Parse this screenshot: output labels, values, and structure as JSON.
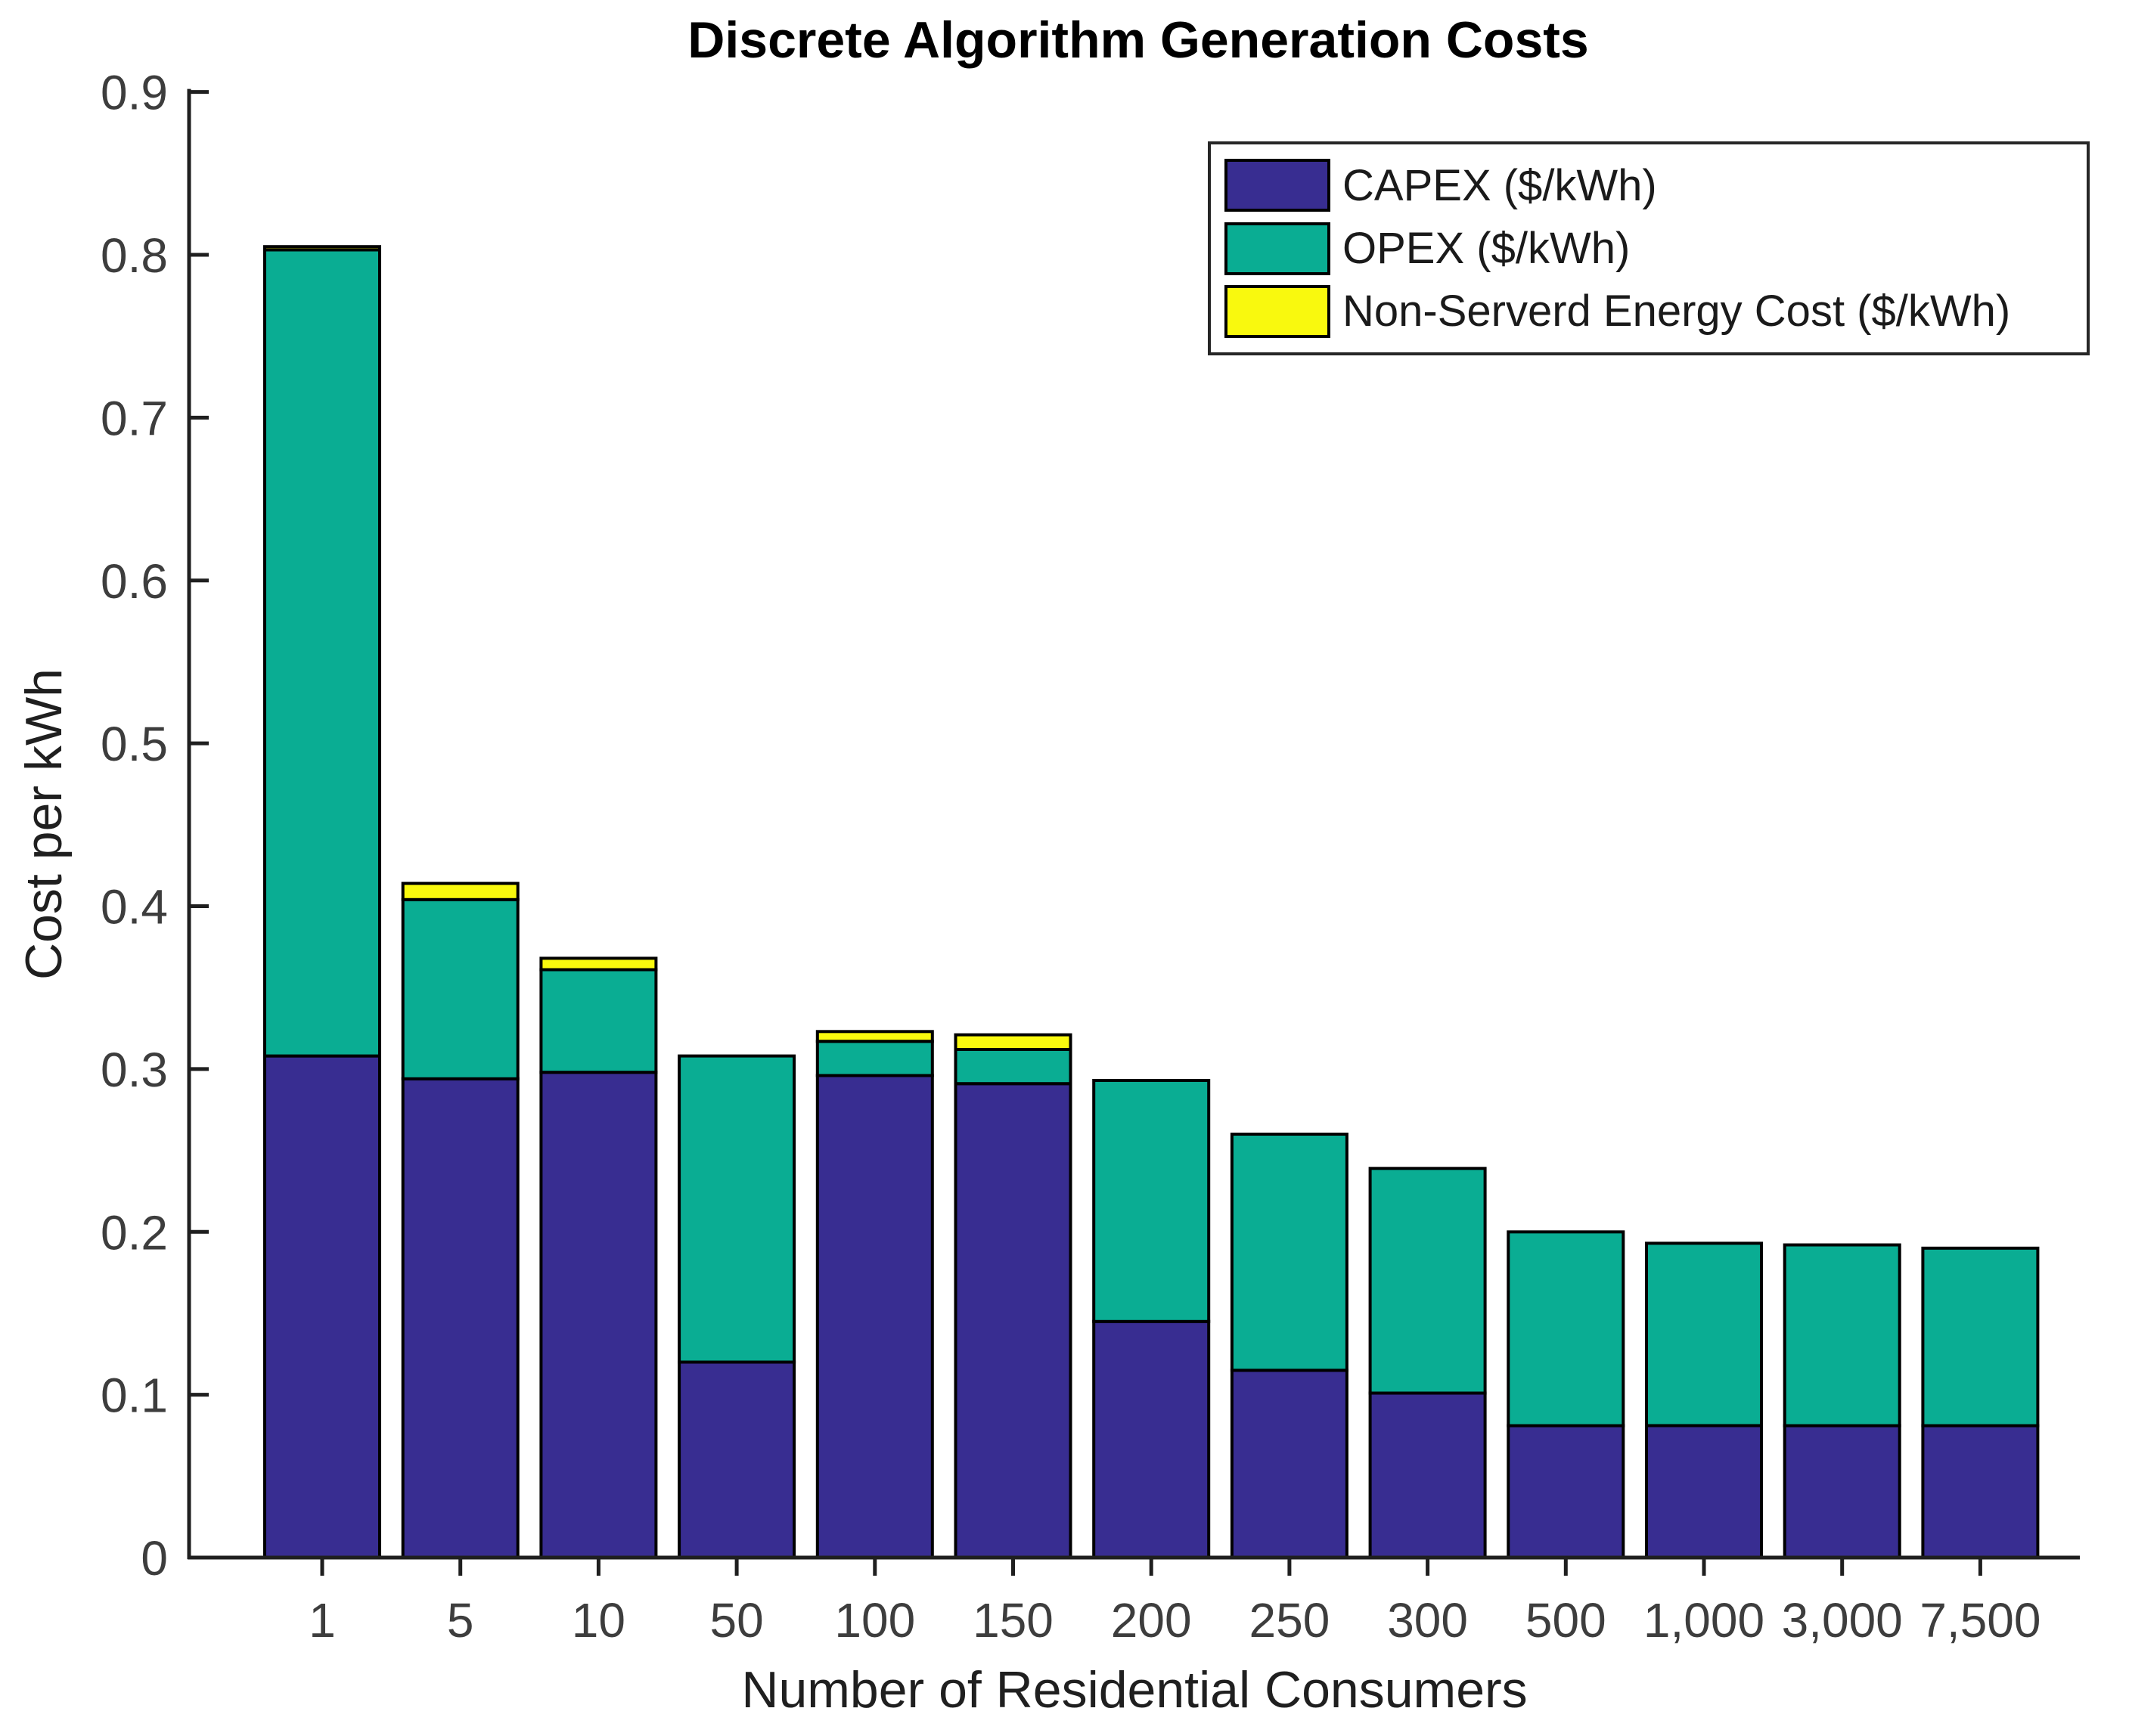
{
  "chart_data": {
    "type": "bar",
    "stacked": true,
    "title": "Discrete Algorithm Generation Costs",
    "xlabel": "Number of Residential Consumers",
    "ylabel": "Cost per kWh",
    "categories": [
      "1",
      "5",
      "10",
      "50",
      "100",
      "150",
      "200",
      "250",
      "300",
      "500",
      "1,000",
      "3,000",
      "7,500"
    ],
    "series": [
      {
        "name": "CAPEX ($/kWh)",
        "color": "#382D91",
        "values": [
          0.308,
          0.294,
          0.298,
          0.12,
          0.296,
          0.291,
          0.145,
          0.115,
          0.101,
          0.081,
          0.081,
          0.081,
          0.081
        ]
      },
      {
        "name": "OPEX ($/kWh)",
        "color": "#0AAD93",
        "values": [
          0.495,
          0.11,
          0.063,
          0.188,
          0.021,
          0.021,
          0.148,
          0.145,
          0.138,
          0.119,
          0.112,
          0.111,
          0.109
        ]
      },
      {
        "name": "Non-Serverd Energy Cost ($/kWh)",
        "color": "#F9F90E",
        "values": [
          0.002,
          0.01,
          0.007,
          0,
          0.006,
          0.009,
          0,
          0,
          0,
          0,
          0,
          0,
          0
        ]
      }
    ],
    "totals": [
      0.805,
      0.414,
      0.368,
      0.308,
      0.323,
      0.321,
      0.293,
      0.26,
      0.239,
      0.2,
      0.193,
      0.192,
      0.19
    ],
    "ylim": [
      0,
      0.9
    ],
    "ytick_labels": [
      "0",
      "0.1",
      "0.2",
      "0.3",
      "0.4",
      "0.5",
      "0.6",
      "0.7",
      "0.8",
      "0.9"
    ],
    "grid": false,
    "legend_position": "top-right",
    "bar_edge_color": "#000000",
    "axis_color": "#1f1f1f",
    "tick_label_color": "#3d3d3d"
  }
}
